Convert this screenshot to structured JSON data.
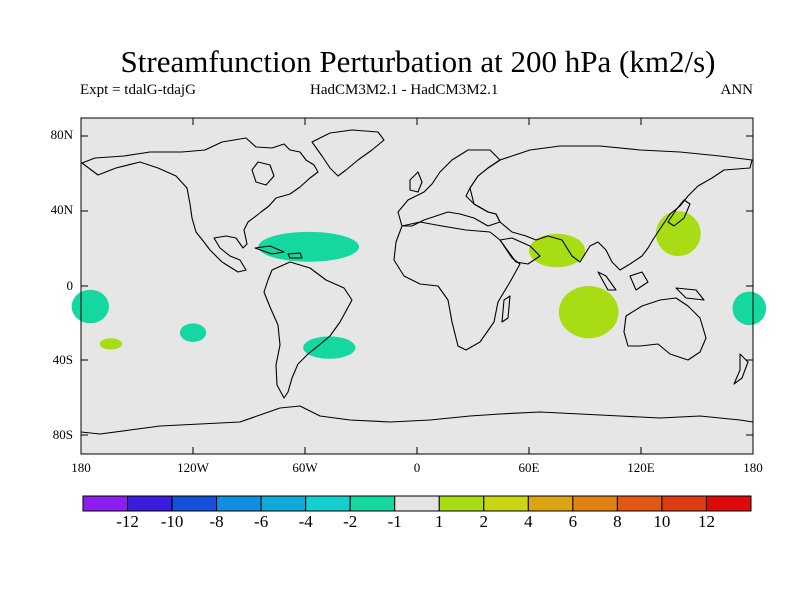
{
  "title": "Streamfunction Perturbation at 200 hPa (km2/s)",
  "subtitle_left": "Expt = tdalG-tdajG",
  "subtitle_center": "HadCM3M2.1 - HadCM3M2.1",
  "subtitle_right": "ANN",
  "lat_labels": [
    "80N",
    "40N",
    "0",
    "40S",
    "80S"
  ],
  "lon_labels": [
    "180",
    "120W",
    "60W",
    "0",
    "60E",
    "120E",
    "180"
  ],
  "colorbar": {
    "labels": [
      "-12",
      "-10",
      "-8",
      "-6",
      "-4",
      "-2",
      "-1",
      "1",
      "2",
      "4",
      "6",
      "8",
      "10",
      "12"
    ],
    "colors": [
      "#8b1ff0",
      "#3c1cdc",
      "#1550d8",
      "#128ee0",
      "#10aad6",
      "#15cece",
      "#14d8a0",
      "#e4e4e4",
      "#a8dc14",
      "#c8d614",
      "#dca414",
      "#e08214",
      "#e05814",
      "#dc3c14",
      "#dc0a0a"
    ]
  },
  "colors": {
    "land_ocean_bg": "#e6e6e6",
    "coast": "#000000",
    "neg_1_2": "#14d8a0",
    "pos_1_2": "#a8dc14"
  },
  "chart_data": {
    "type": "contour-map",
    "field": "200 hPa streamfunction perturbation",
    "units": "km2/s",
    "projection": "cylindrical equidistant",
    "lon_range": [
      -180,
      180
    ],
    "lat_range": [
      -90,
      90
    ],
    "levels": [
      -12,
      -10,
      -8,
      -6,
      -4,
      -2,
      -1,
      1,
      2,
      4,
      6,
      8,
      10,
      12
    ],
    "anomalies": [
      {
        "name": "caribbean-atlantic-low",
        "lon": -58,
        "lat": 21,
        "rx": 27,
        "ry": 8,
        "value_range": [
          -2,
          -1
        ]
      },
      {
        "name": "tropical-pacific-west-low",
        "lon": -175,
        "lat": -11,
        "rx": 10,
        "ry": 9,
        "value_range": [
          -2,
          -1
        ]
      },
      {
        "name": "south-pacific-low",
        "lon": -120,
        "lat": -25,
        "rx": 7,
        "ry": 5,
        "value_range": [
          -2,
          -1
        ]
      },
      {
        "name": "south-atlantic-low",
        "lon": -47,
        "lat": -33,
        "rx": 14,
        "ry": 6,
        "value_range": [
          -2,
          -1
        ]
      },
      {
        "name": "date-line-low",
        "lon": 178,
        "lat": -12,
        "rx": 9,
        "ry": 9,
        "value_range": [
          -2,
          -1
        ]
      },
      {
        "name": "south-pacific-small-high",
        "lon": -164,
        "lat": -31,
        "rx": 6,
        "ry": 3,
        "value_range": [
          1,
          2
        ]
      },
      {
        "name": "india-high",
        "lon": 75,
        "lat": 19,
        "rx": 15,
        "ry": 9,
        "value_range": [
          1,
          2
        ]
      },
      {
        "name": "indian-ocean-high",
        "lon": 92,
        "lat": -14,
        "rx": 16,
        "ry": 14,
        "value_range": [
          1,
          2
        ]
      },
      {
        "name": "japan-high",
        "lon": 140,
        "lat": 28,
        "rx": 12,
        "ry": 12,
        "value_range": [
          1,
          2
        ]
      }
    ]
  }
}
